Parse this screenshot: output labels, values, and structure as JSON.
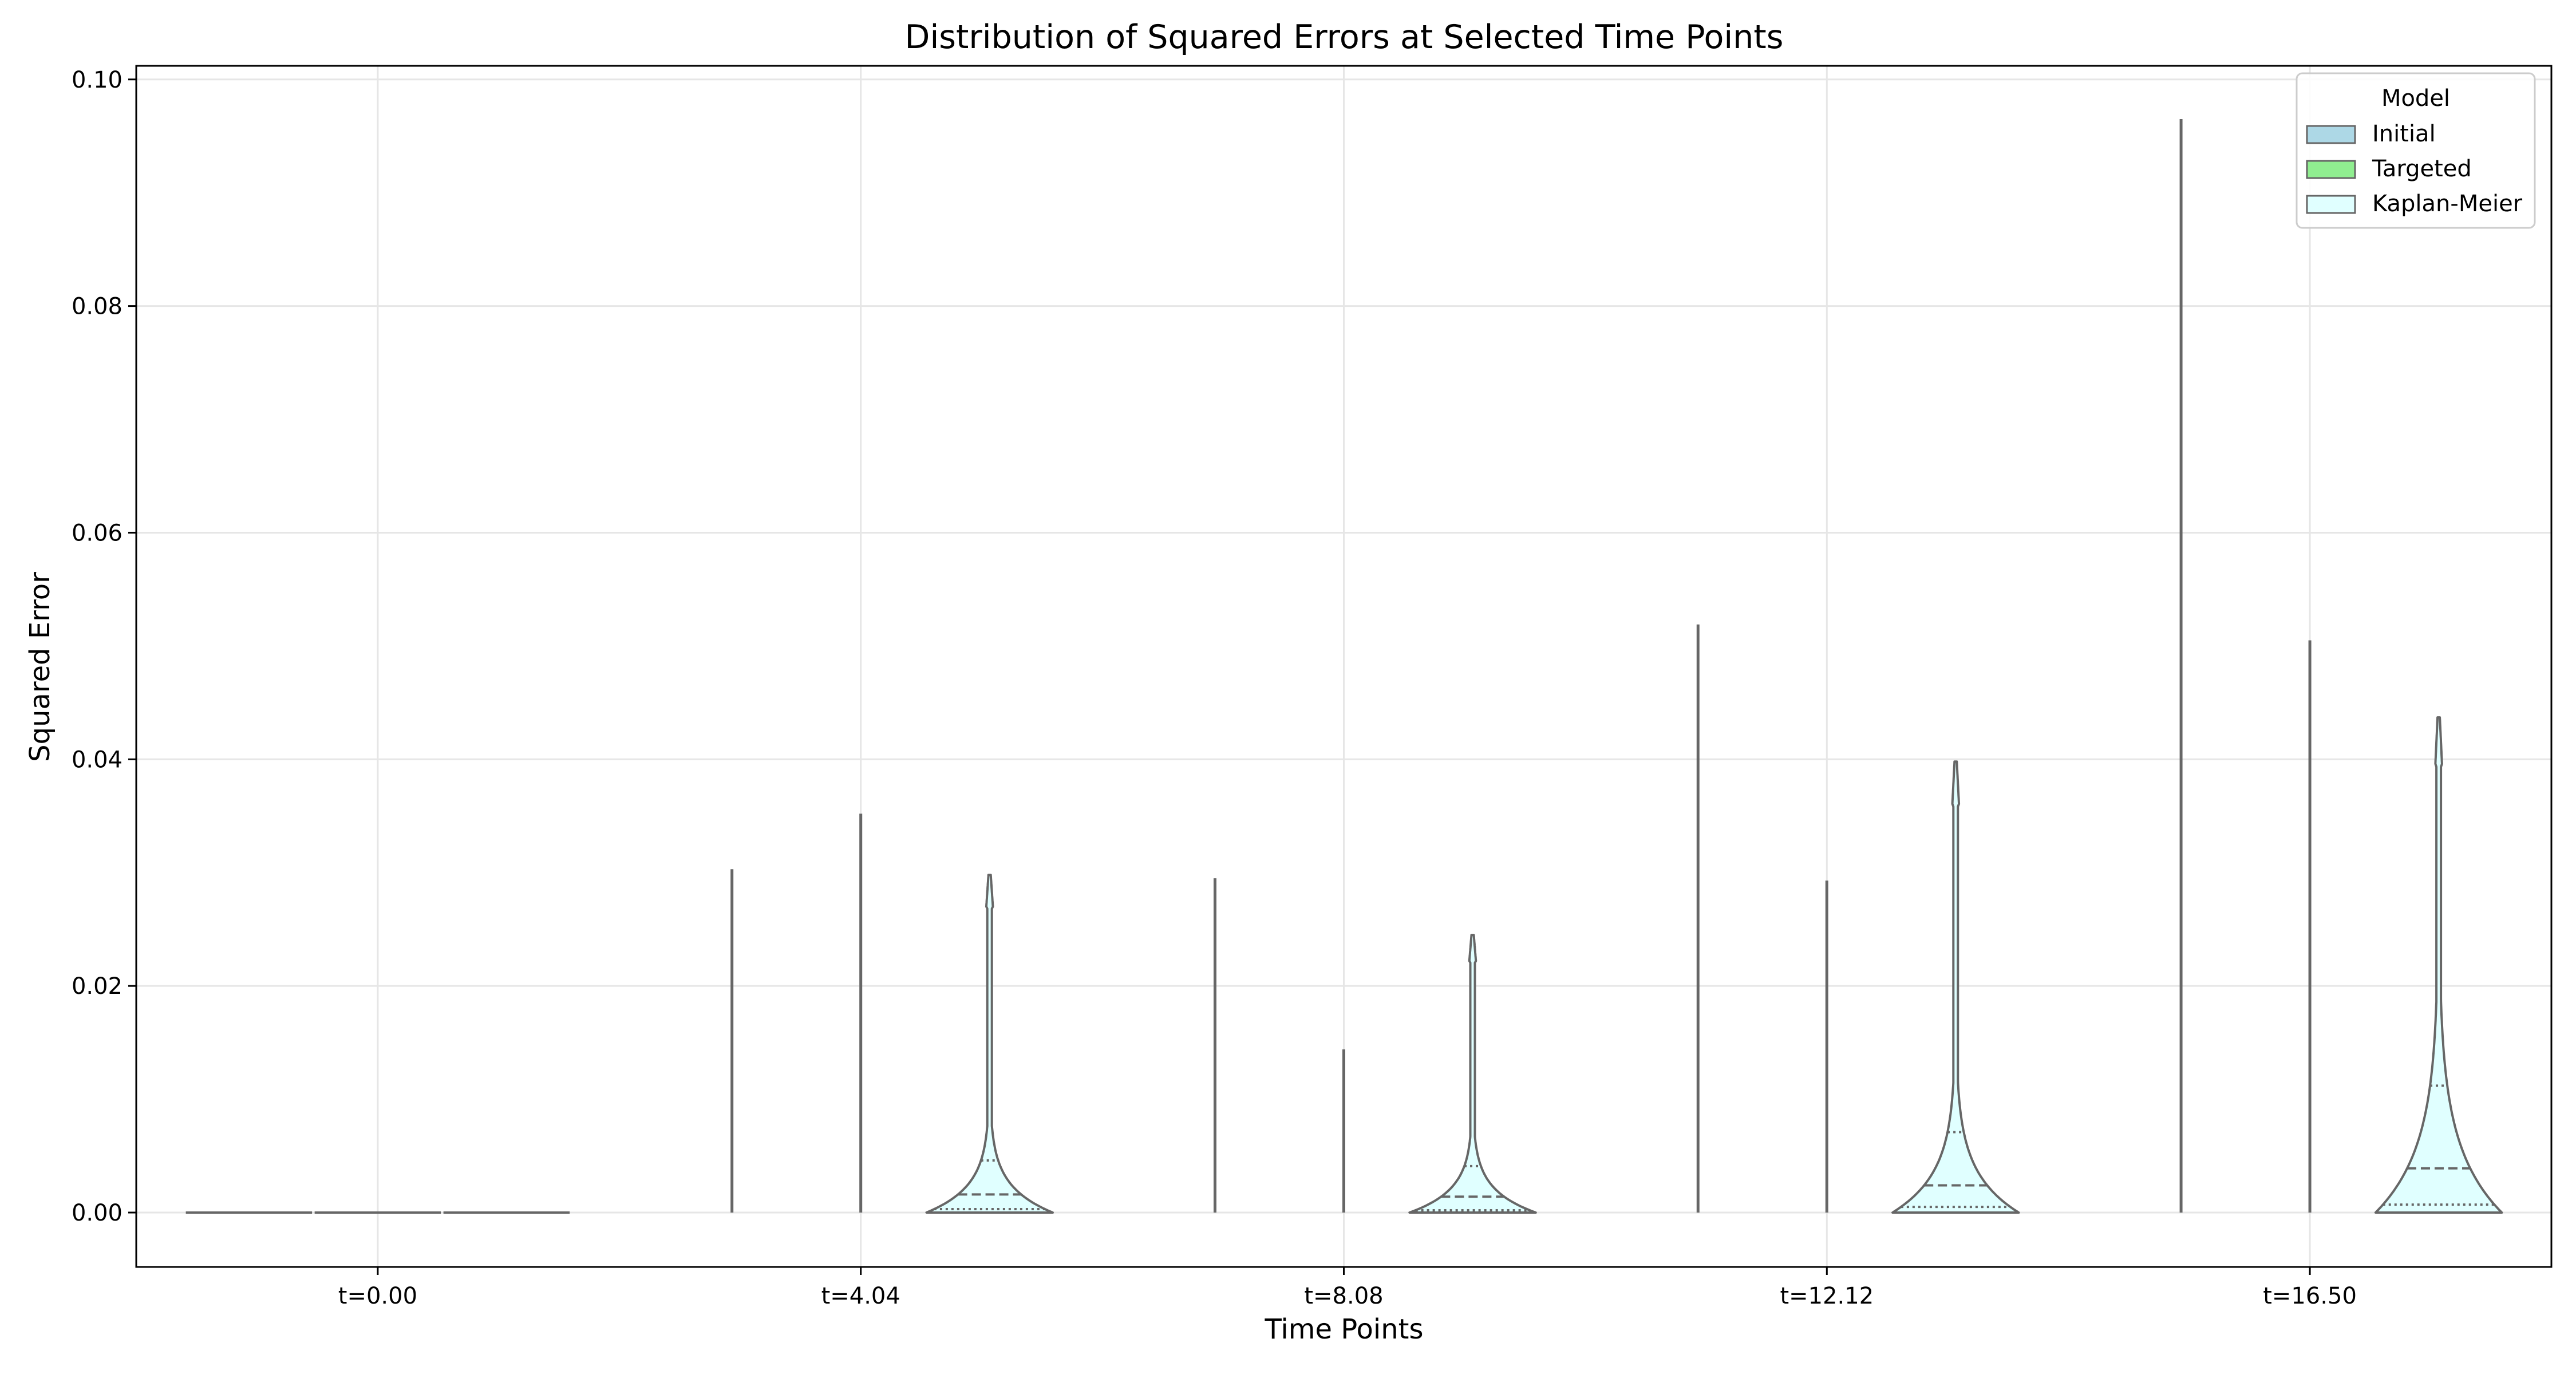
{
  "chart_data": {
    "type": "violin",
    "title": "Distribution of Squared Errors at Selected Time Points",
    "xlabel": "Time Points",
    "ylabel": "Squared Error",
    "categories": [
      "t=0.00",
      "t=4.04",
      "t=8.08",
      "t=12.12",
      "t=16.50"
    ],
    "ylim": [
      -0.0048,
      0.1012
    ],
    "yticks": [
      0.0,
      0.02,
      0.04,
      0.06,
      0.08,
      0.1
    ],
    "ytick_labels": [
      "0.00",
      "0.02",
      "0.04",
      "0.06",
      "0.08",
      "0.10"
    ],
    "grid": true,
    "legend": {
      "title": "Model",
      "placement": "top-right",
      "entries": [
        {
          "name": "Initial",
          "color": "#add8e6"
        },
        {
          "name": "Targeted",
          "color": "#90ee90"
        },
        {
          "name": "Kaplan-Meier",
          "color": "#e0ffff"
        }
      ]
    },
    "series": [
      {
        "name": "Initial",
        "color": "#add8e6",
        "max": [
          0.0,
          0.0303,
          0.0295,
          0.0519,
          0.0965
        ]
      },
      {
        "name": "Targeted",
        "color": "#90ee90",
        "max": [
          0.0,
          0.0352,
          0.0144,
          0.0293,
          0.0505
        ]
      },
      {
        "name": "Kaplan-Meier",
        "color": "#e0ffff",
        "max": [
          0.0,
          0.0298,
          0.0245,
          0.0398,
          0.0437
        ],
        "q1": [
          0.0,
          0.0003,
          0.0002,
          0.0005,
          0.0007
        ],
        "median": [
          0.0,
          0.0016,
          0.0014,
          0.0024,
          0.0039
        ],
        "q3": [
          0.0,
          0.0046,
          0.0041,
          0.0071,
          0.0112
        ]
      }
    ],
    "colors": {
      "outline": "#666666",
      "grid": "#e6e6e6",
      "axis": "#000000"
    }
  }
}
